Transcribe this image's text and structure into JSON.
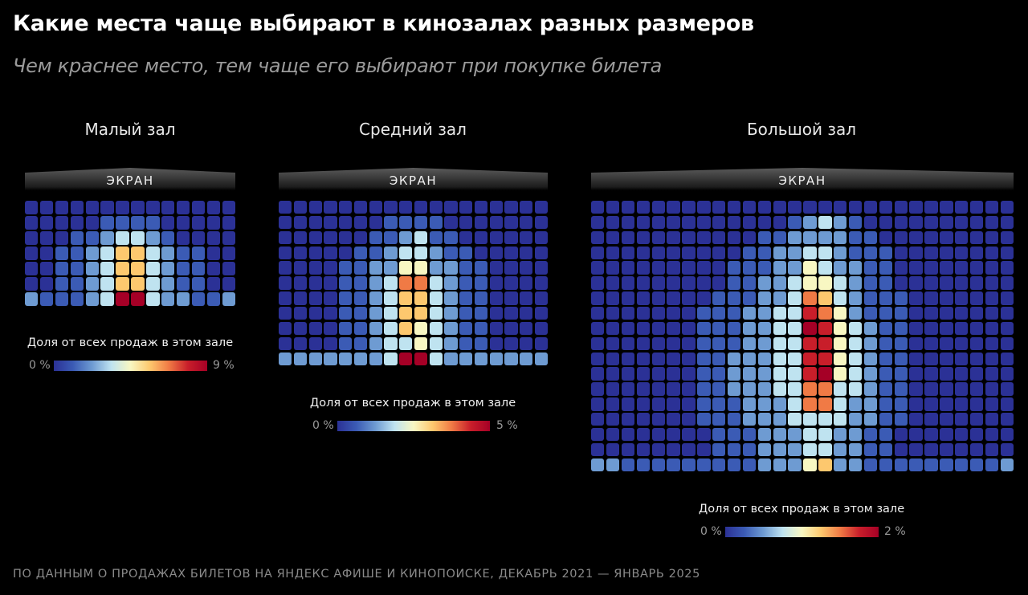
{
  "title": "Какие места чаще выбирают в кинозалах разных размеров",
  "subtitle": "Чем краснее место, тем чаще его выбирают при покупке билета",
  "footer": "ПО ДАННЫМ О ПРОДАЖАХ БИЛЕТОВ НА ЯНДЕКС АФИШЕ И КИНОПОИСКЕ, ДЕКАБРЬ 2021 — ЯНВАРЬ 2025",
  "colors": {
    "background": "#000000",
    "scale": [
      "#2b3196",
      "#3b5bb5",
      "#6e9bd2",
      "#bfe3f0",
      "#f8f7c2",
      "#fdc86e",
      "#f07a45",
      "#c81e2a",
      "#a50026"
    ]
  },
  "chart_data": [
    {
      "type": "heatmap",
      "title": "Малый зал",
      "screen_label": "ЭКРАН",
      "legend_title": "Доля от всех продаж в этом зале",
      "legend_min": "0 %",
      "legend_max": "9 %",
      "rows": 7,
      "cols": 14,
      "levels": [
        [
          0,
          0,
          0,
          0,
          0,
          0,
          0,
          0,
          0,
          0,
          0,
          0,
          0,
          0
        ],
        [
          0,
          0,
          0,
          0,
          0,
          1,
          1,
          1,
          1,
          0,
          0,
          0,
          0,
          0
        ],
        [
          0,
          0,
          0,
          1,
          1,
          2,
          3,
          3,
          2,
          1,
          0,
          0,
          0,
          0
        ],
        [
          0,
          0,
          1,
          1,
          2,
          3,
          5,
          5,
          3,
          2,
          1,
          1,
          0,
          0
        ],
        [
          0,
          0,
          1,
          1,
          2,
          3,
          5,
          5,
          3,
          2,
          1,
          1,
          0,
          0
        ],
        [
          0,
          0,
          1,
          1,
          2,
          3,
          5,
          5,
          3,
          2,
          1,
          1,
          0,
          0
        ],
        [
          2,
          1,
          1,
          1,
          2,
          3,
          8,
          8,
          3,
          2,
          2,
          1,
          1,
          2
        ]
      ]
    },
    {
      "type": "heatmap",
      "title": "Средний зал",
      "screen_label": "ЭКРАН",
      "legend_title": "Доля от всех продаж в этом зале",
      "legend_min": "0 %",
      "legend_max": "5 %",
      "rows": 11,
      "cols": 18,
      "levels": [
        [
          0,
          0,
          0,
          0,
          0,
          0,
          0,
          0,
          0,
          0,
          0,
          0,
          0,
          0,
          0,
          0,
          0,
          0
        ],
        [
          0,
          0,
          0,
          0,
          0,
          0,
          0,
          1,
          1,
          1,
          1,
          0,
          0,
          0,
          0,
          0,
          0,
          0
        ],
        [
          0,
          0,
          0,
          0,
          0,
          0,
          1,
          1,
          2,
          3,
          1,
          1,
          0,
          0,
          0,
          0,
          0,
          0
        ],
        [
          0,
          0,
          0,
          0,
          0,
          1,
          1,
          2,
          3,
          3,
          2,
          1,
          1,
          0,
          0,
          0,
          0,
          0
        ],
        [
          0,
          0,
          0,
          0,
          1,
          1,
          2,
          2,
          4,
          4,
          2,
          2,
          1,
          1,
          0,
          0,
          0,
          0
        ],
        [
          0,
          0,
          0,
          0,
          1,
          1,
          2,
          3,
          6,
          6,
          3,
          2,
          1,
          1,
          0,
          0,
          0,
          0
        ],
        [
          0,
          0,
          0,
          0,
          1,
          1,
          2,
          3,
          5,
          5,
          3,
          2,
          1,
          1,
          0,
          0,
          0,
          0
        ],
        [
          0,
          0,
          0,
          0,
          1,
          1,
          2,
          3,
          5,
          5,
          3,
          2,
          1,
          1,
          0,
          0,
          0,
          0
        ],
        [
          0,
          0,
          0,
          0,
          1,
          1,
          2,
          3,
          5,
          4,
          3,
          2,
          1,
          1,
          0,
          0,
          0,
          0
        ],
        [
          0,
          0,
          0,
          0,
          1,
          1,
          2,
          3,
          3,
          4,
          3,
          2,
          1,
          1,
          0,
          0,
          0,
          0
        ],
        [
          2,
          2,
          2,
          2,
          2,
          2,
          2,
          3,
          8,
          8,
          3,
          2,
          2,
          2,
          2,
          2,
          2,
          2
        ]
      ]
    },
    {
      "type": "heatmap",
      "title": "Большой зал",
      "screen_label": "ЭКРАН",
      "legend_title": "Доля от всех продаж в этом зале",
      "legend_min": "0 %",
      "legend_max": "2 %",
      "rows": 18,
      "cols": 28,
      "levels": [
        [
          0,
          0,
          0,
          0,
          0,
          0,
          0,
          0,
          0,
          0,
          0,
          0,
          0,
          0,
          0,
          0,
          0,
          0,
          0,
          0,
          0,
          0,
          0,
          0,
          0,
          0,
          0,
          0
        ],
        [
          0,
          0,
          0,
          0,
          0,
          0,
          0,
          0,
          0,
          0,
          0,
          0,
          0,
          1,
          2,
          3,
          2,
          1,
          0,
          0,
          0,
          0,
          0,
          0,
          0,
          0,
          0,
          0
        ],
        [
          0,
          0,
          0,
          0,
          0,
          0,
          0,
          0,
          0,
          0,
          0,
          1,
          1,
          2,
          2,
          2,
          2,
          1,
          1,
          0,
          0,
          0,
          0,
          0,
          0,
          0,
          0,
          0
        ],
        [
          0,
          0,
          0,
          0,
          0,
          0,
          0,
          0,
          0,
          0,
          1,
          1,
          2,
          2,
          3,
          3,
          2,
          1,
          1,
          1,
          0,
          0,
          0,
          0,
          0,
          0,
          0,
          0
        ],
        [
          0,
          0,
          0,
          0,
          0,
          0,
          0,
          0,
          0,
          1,
          1,
          1,
          2,
          2,
          4,
          3,
          2,
          2,
          1,
          1,
          0,
          0,
          0,
          0,
          0,
          0,
          0,
          0
        ],
        [
          0,
          0,
          0,
          0,
          0,
          0,
          0,
          0,
          0,
          1,
          1,
          2,
          2,
          3,
          4,
          4,
          3,
          2,
          1,
          1,
          0,
          0,
          0,
          0,
          0,
          0,
          0,
          0
        ],
        [
          0,
          0,
          0,
          0,
          0,
          0,
          0,
          0,
          1,
          1,
          1,
          2,
          2,
          3,
          6,
          5,
          3,
          2,
          1,
          1,
          1,
          0,
          0,
          0,
          0,
          0,
          0,
          0
        ],
        [
          0,
          0,
          0,
          0,
          0,
          0,
          0,
          1,
          1,
          1,
          2,
          2,
          3,
          3,
          7,
          6,
          4,
          2,
          1,
          1,
          1,
          0,
          0,
          0,
          0,
          0,
          0,
          0
        ],
        [
          0,
          0,
          0,
          0,
          0,
          0,
          0,
          1,
          1,
          1,
          2,
          2,
          3,
          3,
          8,
          7,
          4,
          3,
          2,
          1,
          1,
          0,
          0,
          0,
          0,
          0,
          0,
          0
        ],
        [
          0,
          0,
          0,
          0,
          0,
          0,
          0,
          1,
          1,
          1,
          2,
          2,
          3,
          3,
          7,
          7,
          4,
          3,
          2,
          1,
          1,
          0,
          0,
          0,
          0,
          0,
          0,
          0
        ],
        [
          0,
          0,
          0,
          0,
          0,
          0,
          0,
          1,
          1,
          2,
          2,
          2,
          3,
          3,
          7,
          7,
          4,
          3,
          2,
          1,
          1,
          0,
          0,
          0,
          0,
          0,
          0,
          0
        ],
        [
          0,
          0,
          0,
          0,
          0,
          0,
          0,
          1,
          1,
          2,
          2,
          2,
          3,
          3,
          7,
          8,
          4,
          3,
          2,
          1,
          1,
          0,
          0,
          0,
          0,
          0,
          0,
          0
        ],
        [
          0,
          0,
          0,
          0,
          0,
          0,
          0,
          1,
          1,
          2,
          2,
          2,
          3,
          3,
          6,
          6,
          3,
          3,
          2,
          1,
          1,
          0,
          0,
          0,
          0,
          0,
          0,
          0
        ],
        [
          0,
          0,
          0,
          0,
          0,
          0,
          0,
          1,
          1,
          1,
          2,
          2,
          2,
          3,
          6,
          6,
          3,
          2,
          2,
          1,
          1,
          0,
          0,
          0,
          0,
          0,
          0,
          0
        ],
        [
          0,
          0,
          0,
          0,
          0,
          0,
          0,
          1,
          1,
          1,
          2,
          2,
          2,
          3,
          3,
          3,
          3,
          2,
          2,
          1,
          1,
          0,
          0,
          0,
          0,
          0,
          0,
          0
        ],
        [
          0,
          0,
          0,
          0,
          0,
          0,
          0,
          0,
          1,
          1,
          1,
          2,
          2,
          2,
          3,
          3,
          2,
          2,
          1,
          1,
          0,
          0,
          0,
          0,
          0,
          0,
          0,
          0
        ],
        [
          0,
          0,
          0,
          0,
          0,
          0,
          0,
          0,
          1,
          1,
          1,
          2,
          2,
          2,
          3,
          3,
          2,
          2,
          1,
          1,
          0,
          0,
          0,
          0,
          0,
          0,
          0,
          0
        ],
        [
          2,
          2,
          1,
          1,
          1,
          1,
          1,
          1,
          1,
          1,
          1,
          2,
          2,
          2,
          4,
          5,
          2,
          2,
          1,
          1,
          1,
          1,
          1,
          1,
          1,
          1,
          1,
          2
        ]
      ]
    }
  ]
}
